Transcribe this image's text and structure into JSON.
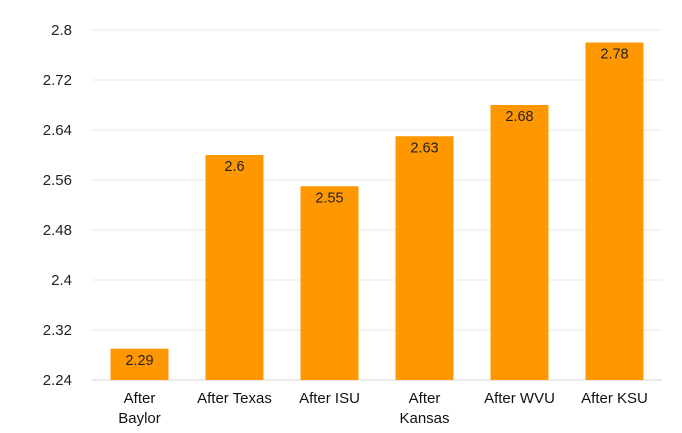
{
  "chart_data": {
    "type": "bar",
    "title": "",
    "xlabel": "",
    "ylabel": "",
    "categories": [
      [
        "After",
        "Baylor"
      ],
      [
        "After Texas"
      ],
      [
        "After ISU"
      ],
      [
        "After",
        "Kansas"
      ],
      [
        "After WVU"
      ],
      [
        "After KSU"
      ]
    ],
    "values": [
      2.29,
      2.6,
      2.55,
      2.63,
      2.68,
      2.78
    ],
    "data_labels": [
      "2.29",
      "2.6",
      "2.55",
      "2.63",
      "2.68",
      "2.78"
    ],
    "ylim": [
      2.24,
      2.8
    ],
    "yticks": [
      2.24,
      2.32,
      2.4,
      2.48,
      2.56,
      2.64,
      2.72,
      2.8
    ],
    "ytick_labels": [
      "2.24",
      "2.32",
      "2.4",
      "2.48",
      "2.56",
      "2.64",
      "2.72",
      "2.8"
    ],
    "grid": true,
    "legend": "none",
    "colors": {
      "bar": "#FF9800",
      "grid": "#E9E9E9",
      "text": "#222222"
    }
  }
}
